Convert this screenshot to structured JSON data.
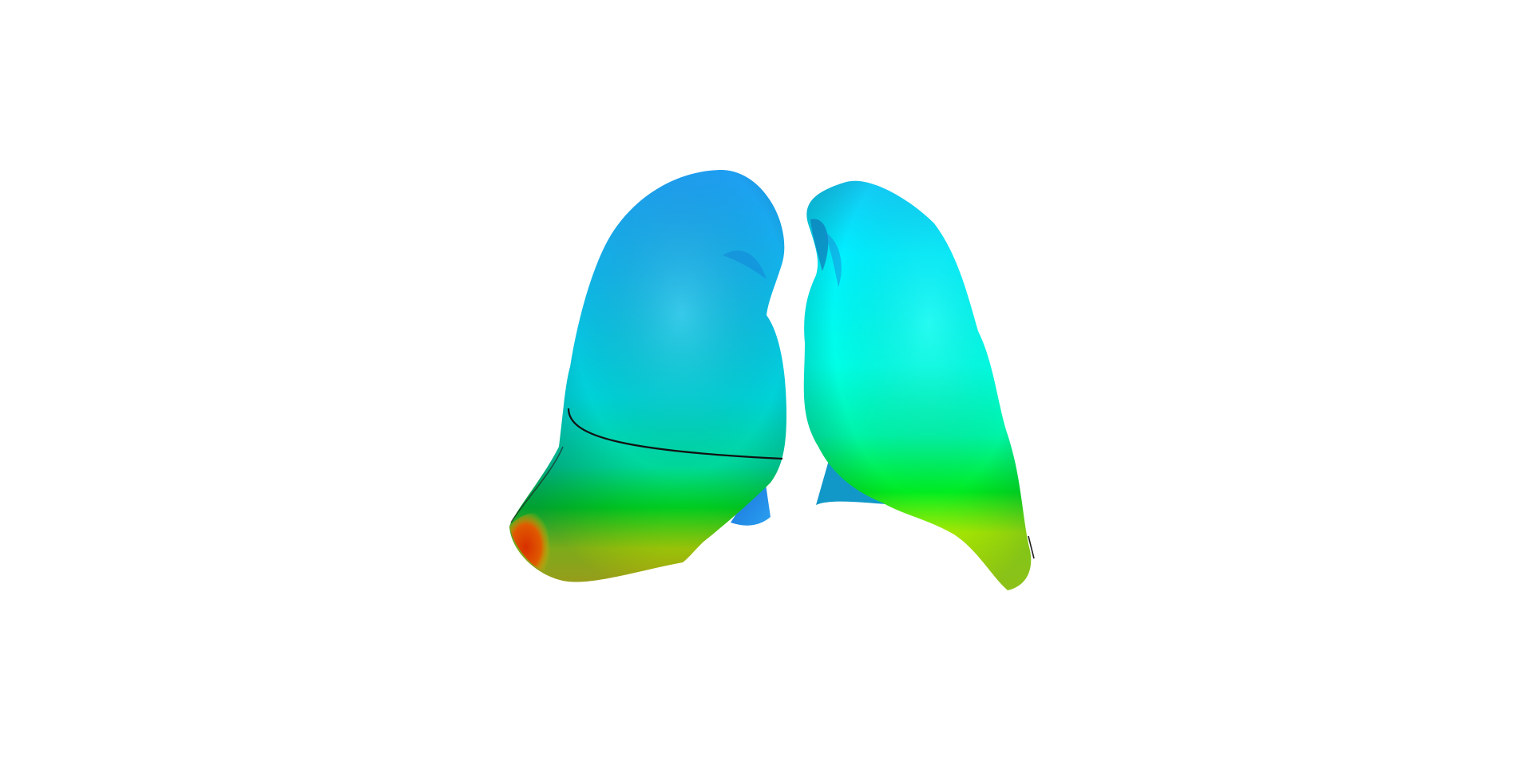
{
  "scene": {
    "background_color": "#ffffff",
    "subject": "lungs-surface-render",
    "colormap": [
      "#1f7fff",
      "#00d0ff",
      "#00ffe8",
      "#00f000",
      "#c8ff00",
      "#f0e000",
      "#e02000"
    ],
    "left_lung": {
      "fissure_line_color": "#111111"
    },
    "right_lung": {}
  }
}
